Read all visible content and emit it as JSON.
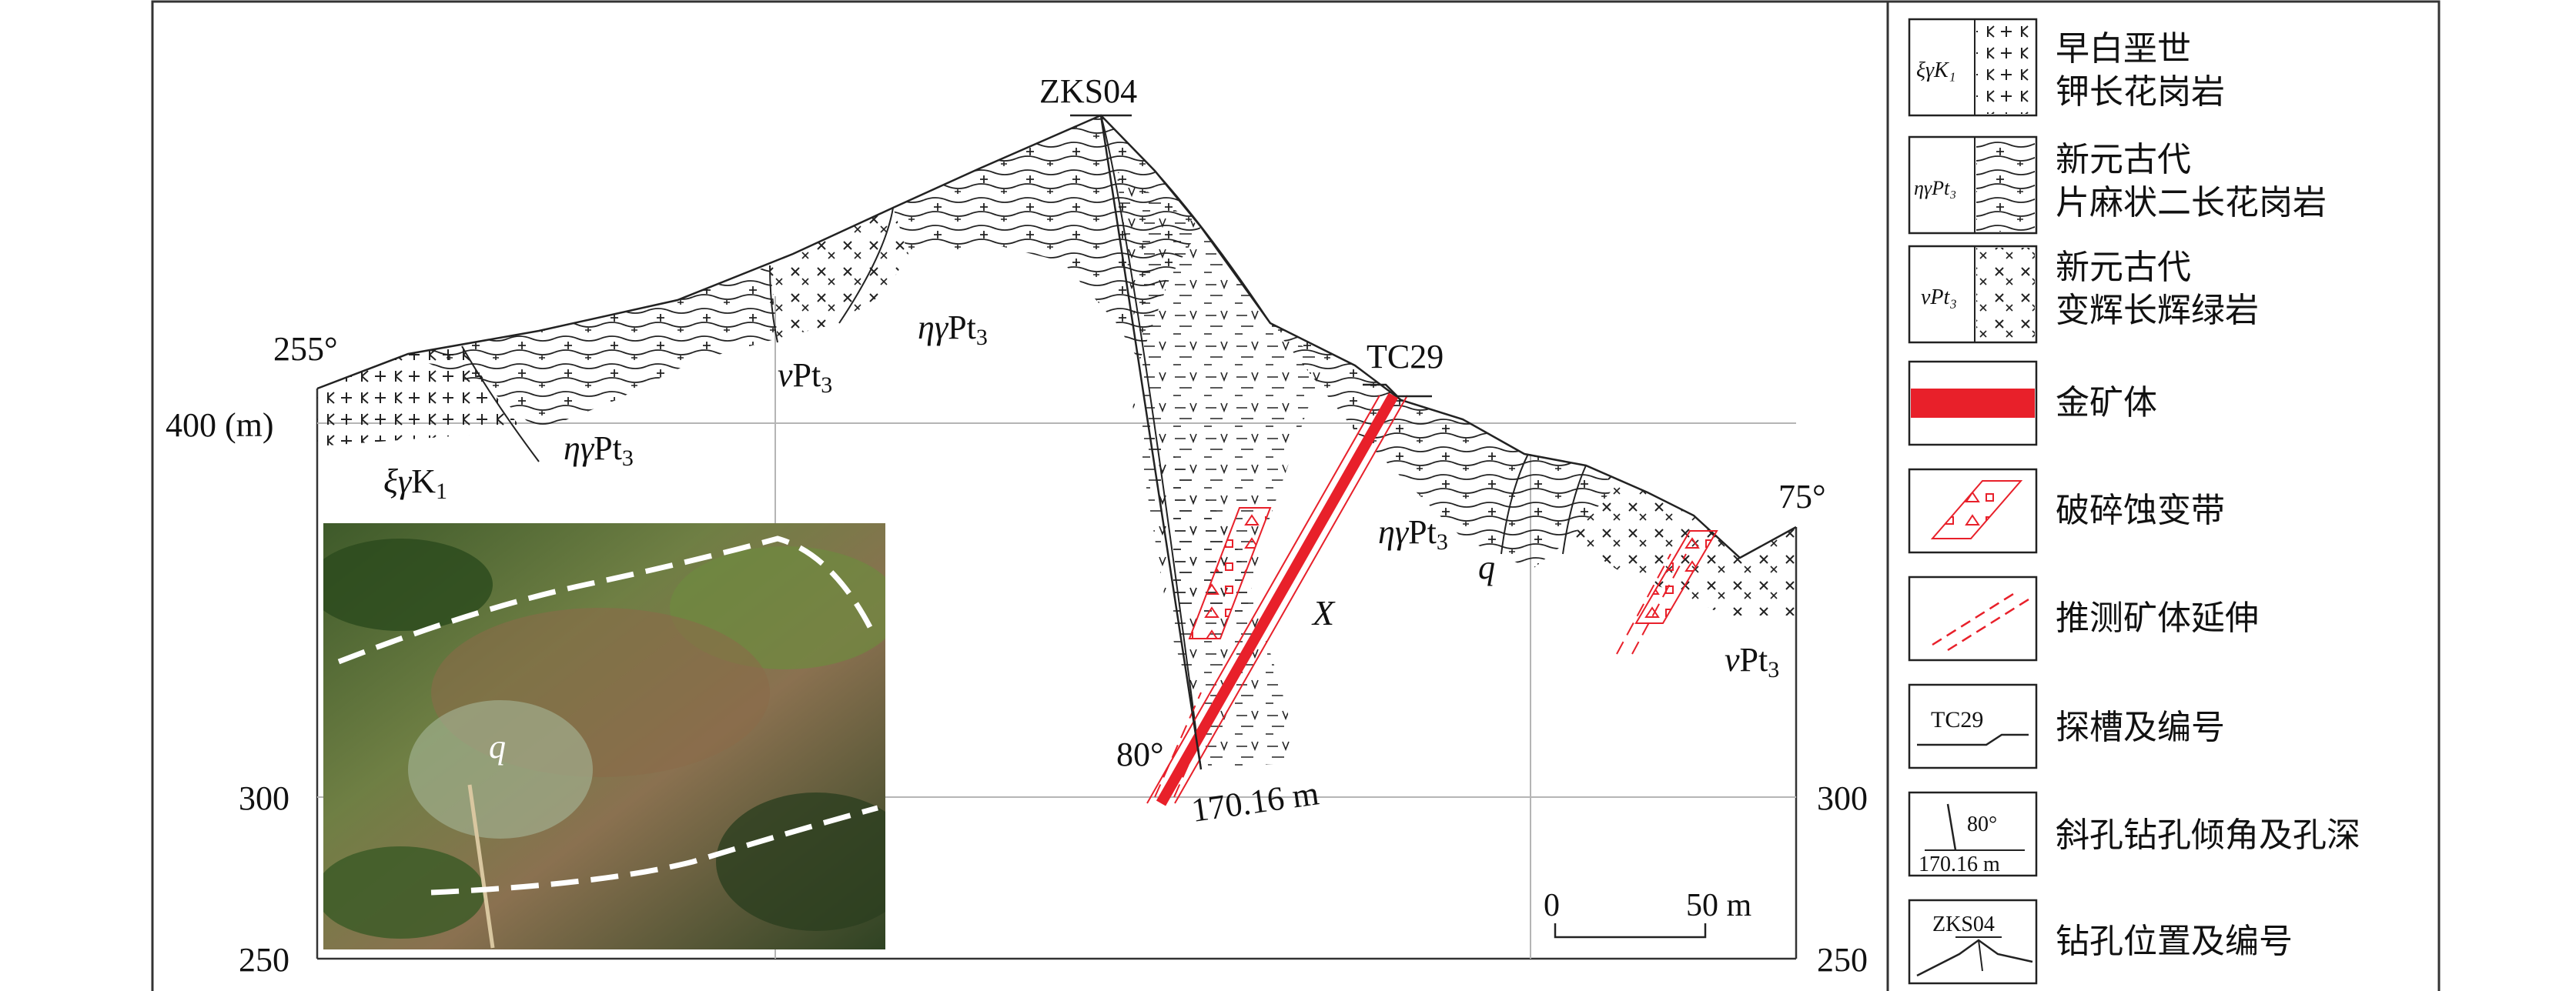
{
  "profile": {
    "azimuth_left": "255°",
    "azimuth_right": "75°",
    "elevation_labels": {
      "e400": "400 (m)",
      "e300_left": "300",
      "e300_right": "300",
      "e250_left": "250",
      "e250_right": "250"
    },
    "drill_hole": "ZKS04",
    "trench": "TC29",
    "drill_angle": "80°",
    "drill_depth": "170.16 m",
    "orebody_label": "X",
    "quartz_label": "q",
    "photo_label": "q",
    "scale_zero": "0",
    "scale_end": "50 m",
    "units": {
      "xi_gamma_k1": {
        "prefix": "ξγ",
        "main": "K",
        "sub": "1"
      },
      "eta_gamma_pt3": {
        "prefix": "ηγ",
        "main": "Pt",
        "sub": "3"
      },
      "nu_pt3": {
        "prefix": "ν",
        "main": "Pt",
        "sub": "3"
      }
    }
  },
  "legend": {
    "items": [
      {
        "symbol": "ξγK₁",
        "line1": "早白垩世",
        "line2": "钾长花岗岩"
      },
      {
        "symbol": "ηγPt₃",
        "line1": "新元古代",
        "line2": "片麻状二长花岗岩"
      },
      {
        "symbol": "νPt₃",
        "line1": "新元古代",
        "line2": "变辉长辉绿岩"
      },
      {
        "symbol": "",
        "line1": "金矿体",
        "line2": ""
      },
      {
        "symbol": "",
        "line1": "破碎蚀变带",
        "line2": ""
      },
      {
        "symbol": "",
        "line1": "推测矿体延伸",
        "line2": ""
      },
      {
        "symbol": "TC29",
        "line1": "探槽及编号",
        "line2": ""
      },
      {
        "symbol": "80°",
        "symbol2": "170.16 m",
        "line1": "斜孔钻孔倾角及孔深",
        "line2": ""
      },
      {
        "symbol": "ZKS04",
        "line1": "钻孔位置及编号",
        "line2": ""
      }
    ]
  },
  "colors": {
    "orebody": "#e8202a",
    "alteration": "#e8202a",
    "frame": "#333333",
    "grid": "#b5b5b5"
  }
}
